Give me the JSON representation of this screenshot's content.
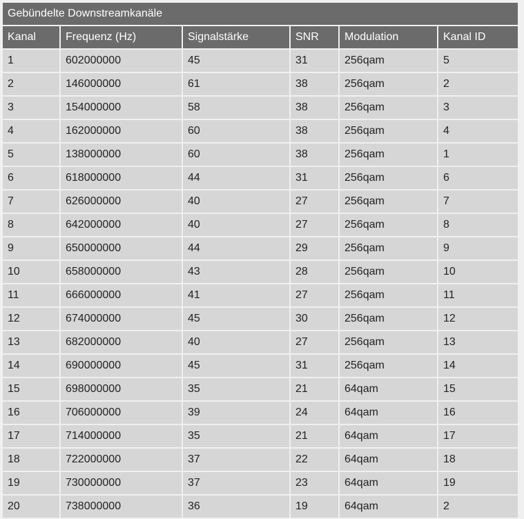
{
  "title": "Gebündelte Downstreamkanäle",
  "columns": [
    "Kanal",
    "Frequenz (Hz)",
    "Signalstärke",
    "SNR",
    "Modulation",
    "Kanal ID"
  ],
  "rows": [
    [
      "1",
      "602000000",
      "45",
      "31",
      "256qam",
      "5"
    ],
    [
      "2",
      "146000000",
      "61",
      "38",
      "256qam",
      "2"
    ],
    [
      "3",
      "154000000",
      "58",
      "38",
      "256qam",
      "3"
    ],
    [
      "4",
      "162000000",
      "60",
      "38",
      "256qam",
      "4"
    ],
    [
      "5",
      "138000000",
      "60",
      "38",
      "256qam",
      "1"
    ],
    [
      "6",
      "618000000",
      "44",
      "31",
      "256qam",
      "6"
    ],
    [
      "7",
      "626000000",
      "40",
      "27",
      "256qam",
      "7"
    ],
    [
      "8",
      "642000000",
      "40",
      "27",
      "256qam",
      "8"
    ],
    [
      "9",
      "650000000",
      "44",
      "29",
      "256qam",
      "9"
    ],
    [
      "10",
      "658000000",
      "43",
      "28",
      "256qam",
      "10"
    ],
    [
      "11",
      "666000000",
      "41",
      "27",
      "256qam",
      "11"
    ],
    [
      "12",
      "674000000",
      "45",
      "30",
      "256qam",
      "12"
    ],
    [
      "13",
      "682000000",
      "40",
      "27",
      "256qam",
      "13"
    ],
    [
      "14",
      "690000000",
      "45",
      "31",
      "256qam",
      "14"
    ],
    [
      "15",
      "698000000",
      "35",
      "21",
      "64qam",
      "15"
    ],
    [
      "16",
      "706000000",
      "39",
      "24",
      "64qam",
      "16"
    ],
    [
      "17",
      "714000000",
      "35",
      "21",
      "64qam",
      "17"
    ],
    [
      "18",
      "722000000",
      "37",
      "22",
      "64qam",
      "18"
    ],
    [
      "19",
      "730000000",
      "37",
      "23",
      "64qam",
      "19"
    ],
    [
      "20",
      "738000000",
      "36",
      "19",
      "64qam",
      "2"
    ]
  ]
}
